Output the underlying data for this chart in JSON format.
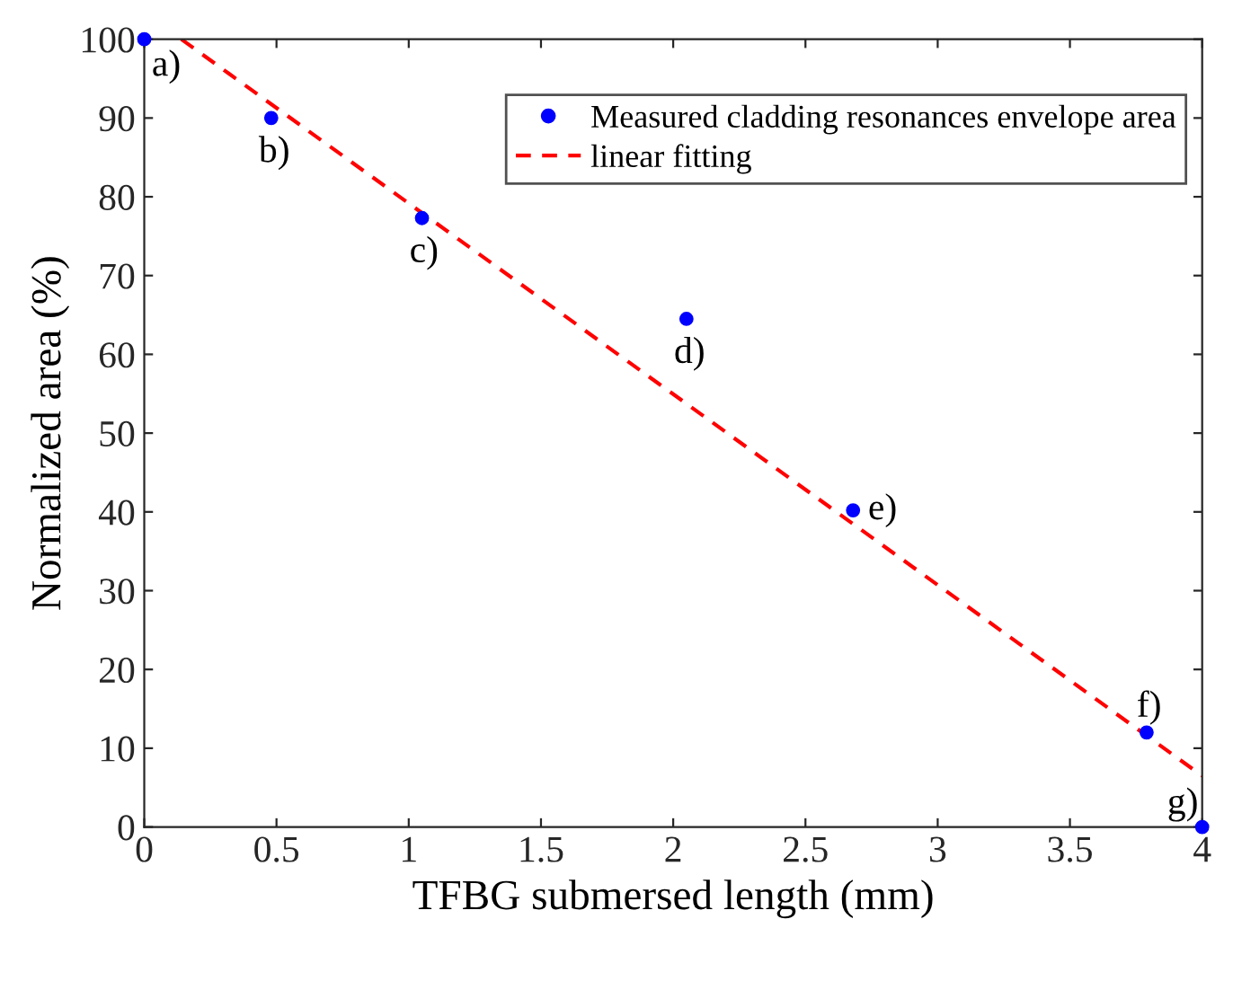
{
  "chart_data": {
    "type": "scatter",
    "xlabel": "TFBG submersed length (mm)",
    "ylabel": "Normalized area (%)",
    "xlim": [
      0,
      4
    ],
    "xticks": [
      0,
      0.5,
      1,
      1.5,
      2,
      2.5,
      3,
      3.5,
      4
    ],
    "ylim": [
      0,
      100
    ],
    "yticks": [
      0,
      10,
      20,
      30,
      40,
      50,
      60,
      70,
      80,
      90,
      100
    ],
    "grid": false,
    "legend": "top right",
    "series": [
      {
        "name": "Measured cladding resonances envelope area",
        "color": "#0000ff",
        "marker": "circle",
        "x": [
          0,
          0.48,
          1.05,
          2.05,
          2.68,
          3.79,
          4.0
        ],
        "values": [
          100,
          90,
          77.3,
          64.5,
          40.2,
          12,
          0
        ]
      },
      {
        "name": "linear fitting",
        "type": "line",
        "color": "#ff0000",
        "line_style": "dashed",
        "marker": "none",
        "x": [
          0.14,
          4.0
        ],
        "values": [
          100,
          6.5
        ]
      }
    ],
    "annotations": [
      {
        "text": "a)",
        "x": 0,
        "y": 100
      },
      {
        "text": "b)",
        "x": 0.48,
        "y": 90
      },
      {
        "text": "c)",
        "x": 1.05,
        "y": 77.3
      },
      {
        "text": "d)",
        "x": 2.05,
        "y": 64.5
      },
      {
        "text": "e)",
        "x": 2.68,
        "y": 40.2
      },
      {
        "text": "f)",
        "x": 3.79,
        "y": 12
      },
      {
        "text": "g)",
        "x": 4.0,
        "y": 0
      }
    ]
  }
}
